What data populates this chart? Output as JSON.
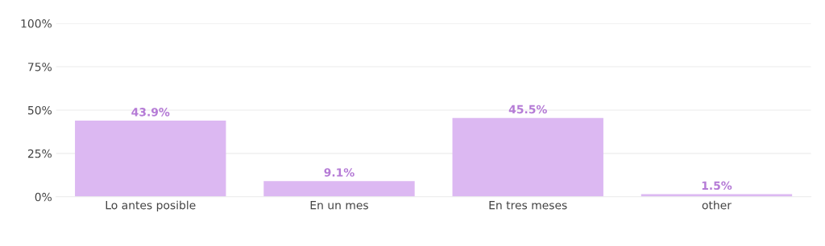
{
  "chart_data": {
    "type": "bar",
    "categories": [
      "Lo antes posible",
      "En un mes",
      "En tres meses",
      "other"
    ],
    "values": [
      43.9,
      9.1,
      45.5,
      1.5
    ],
    "value_labels": [
      "43.9%",
      "9.1%",
      "45.5%",
      "1.5%"
    ],
    "color": "#dcb8f2",
    "ylim": [
      0,
      100
    ],
    "yticks": [
      {
        "value": 0,
        "label": "0%"
      },
      {
        "value": 25,
        "label": "25%"
      },
      {
        "value": 50,
        "label": "50%"
      },
      {
        "value": 75,
        "label": "75%"
      },
      {
        "value": 100,
        "label": "100%"
      }
    ],
    "grid": "y",
    "legend": false
  }
}
